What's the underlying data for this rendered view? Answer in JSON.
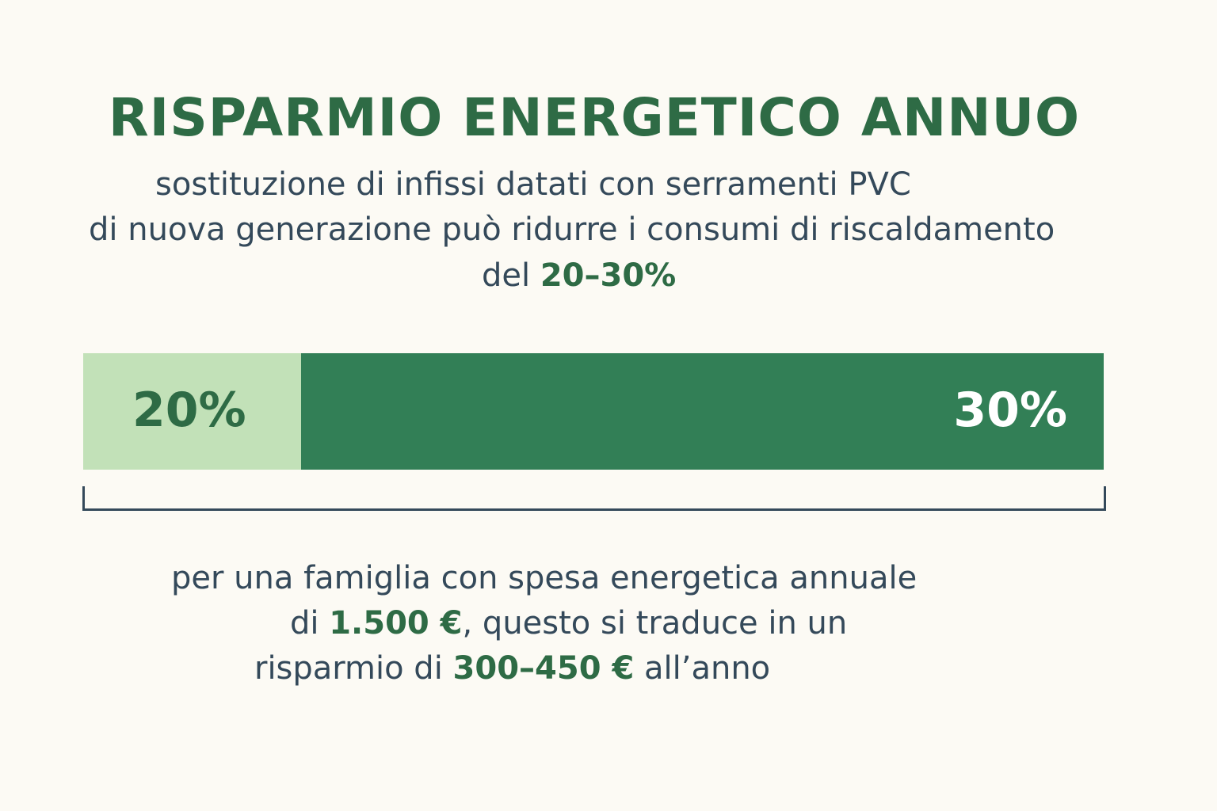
{
  "title": "RISPARMIO ENERGETICO ANNUO",
  "subtitle": {
    "line1": "sostituzione di infissi datati con serramenti PVC",
    "line2": "di nuova generazione può ridurre i consumi di riscaldamento",
    "line3_prefix": "del ",
    "line3_highlight": "20–30%"
  },
  "bar": {
    "low_label": "20%",
    "high_label": "30%",
    "low_value": 20,
    "high_value": 30,
    "colors": {
      "low": "#c2e1b8",
      "high": "#327f56"
    }
  },
  "footer": {
    "line1": "per una famiglia con spesa energetica annuale",
    "line2_prefix": "di ",
    "line2_highlight": "1.500 €",
    "line2_suffix": ", questo si traduce in un",
    "line3_prefix": "risparmio di ",
    "line3_highlight": "300–450 €",
    "line3_suffix": " all’anno"
  },
  "colors": {
    "background": "#fcfaf4",
    "accent": "#2e6b45",
    "text": "#34495a"
  }
}
